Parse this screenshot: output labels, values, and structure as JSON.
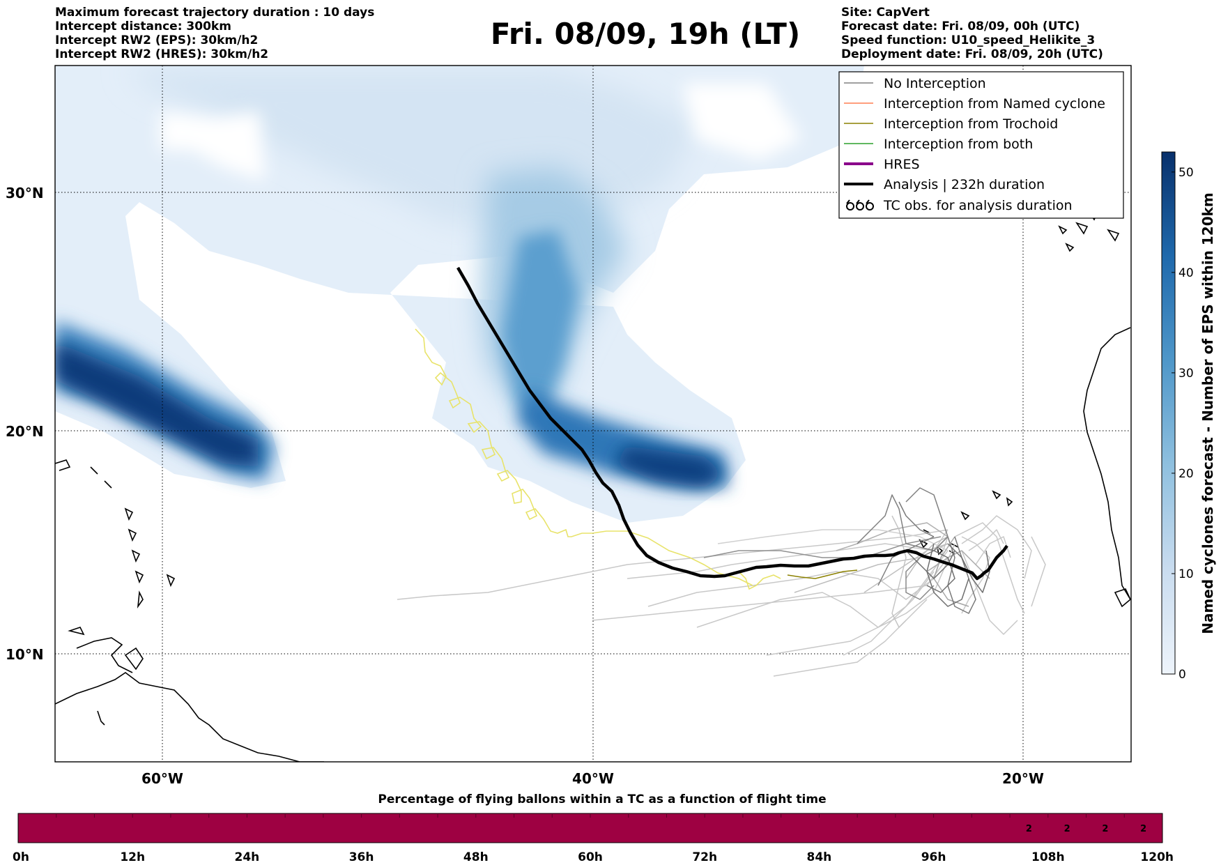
{
  "header": {
    "left": [
      "Maximum forecast trajectory duration : 10 days",
      "Intercept distance: 300km",
      "Intercept RW2 (EPS):  30km/h2",
      "Intercept RW2 (HRES): 30km/h2"
    ],
    "title": "Fri. 08/09, 19h (LT)",
    "right": [
      "Site: CapVert",
      "Forecast date: Fri. 08/09, 00h (UTC)",
      "Speed function: U10_speed_Helikite_3",
      "Deployment date: Fri. 08/09, 20h (UTC)"
    ]
  },
  "map": {
    "lat_labels": [
      "30°N",
      "20°N",
      "10°N"
    ],
    "lon_labels": [
      "60°W",
      "40°W",
      "20°W"
    ],
    "lat_values": [
      30,
      20,
      10
    ],
    "lon_values": [
      -60,
      -40,
      -20
    ],
    "extent": {
      "lon_min": -65,
      "lon_max": -15,
      "lat_min": 5.4,
      "lat_max": 34.8
    }
  },
  "legend": {
    "items": [
      {
        "label": "No Interception",
        "color": "#808080",
        "style": "thin"
      },
      {
        "label": "Interception from Named cyclone",
        "color": "#ff7f50",
        "style": "thin"
      },
      {
        "label": "Interception from Trochoid",
        "color": "#8b8000",
        "style": "thin"
      },
      {
        "label": "Interception from both",
        "color": "#2ca02c",
        "style": "thin"
      },
      {
        "label": "HRES",
        "color": "#8b008b",
        "style": "thick"
      },
      {
        "label": "Analysis | 232h duration",
        "color": "#000000",
        "style": "thick"
      },
      {
        "label": "TC obs. for analysis duration",
        "color": "#000000",
        "style": "symbol"
      }
    ]
  },
  "colorbar": {
    "label": "Named cyclones forecast - Number of EPS within 120km",
    "ticks": [
      "0",
      "10",
      "20",
      "30",
      "40",
      "50"
    ],
    "min": 0,
    "max": 52,
    "color_low": "#e8f0fa",
    "color_high": "#08306b"
  },
  "flight_bar": {
    "title": "Percentage of flying ballons within a TC as a function of flight time",
    "tick_labels": [
      "0h",
      "12h",
      "24h",
      "36h",
      "48h",
      "60h",
      "72h",
      "84h",
      "96h",
      "108h",
      "120h"
    ],
    "cell_values": [
      "2",
      "2",
      "2",
      "2"
    ],
    "color": "#9e0142"
  }
}
